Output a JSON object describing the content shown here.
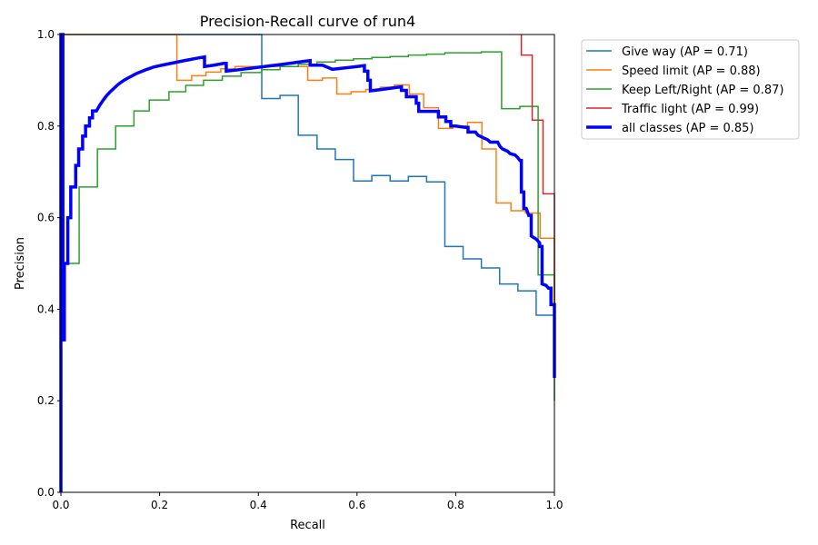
{
  "chart_data": {
    "type": "line",
    "title": "Precision-Recall curve of run4",
    "xlabel": "Recall",
    "ylabel": "Precision",
    "xlim": [
      0,
      1
    ],
    "ylim": [
      0,
      1
    ],
    "xticks": [
      0,
      0.2,
      0.4,
      0.6,
      0.8,
      1.0
    ],
    "xtick_labels": [
      "0.0",
      "0.2",
      "0.4",
      "0.6",
      "0.8",
      "1.0"
    ],
    "yticks": [
      0,
      0.2,
      0.4,
      0.6,
      0.8,
      1.0
    ],
    "ytick_labels": [
      "0.0",
      "0.2",
      "0.4",
      "0.6",
      "0.8",
      "1.0"
    ],
    "grid": false,
    "legend_position": "outside-top-right",
    "series": [
      {
        "name": "Give way (AP = 0.71)",
        "color": "#1f77b4",
        "style": "step",
        "points": [
          [
            0,
            1.0
          ],
          [
            0.407,
            1.0
          ],
          [
            0.407,
            0.86
          ],
          [
            0.444,
            0.86
          ],
          [
            0.444,
            0.867
          ],
          [
            0.481,
            0.867
          ],
          [
            0.481,
            0.78
          ],
          [
            0.519,
            0.78
          ],
          [
            0.519,
            0.75
          ],
          [
            0.556,
            0.75
          ],
          [
            0.556,
            0.727
          ],
          [
            0.593,
            0.727
          ],
          [
            0.593,
            0.68
          ],
          [
            0.63,
            0.68
          ],
          [
            0.63,
            0.692
          ],
          [
            0.667,
            0.692
          ],
          [
            0.667,
            0.68
          ],
          [
            0.704,
            0.68
          ],
          [
            0.704,
            0.69
          ],
          [
            0.741,
            0.69
          ],
          [
            0.741,
            0.678
          ],
          [
            0.778,
            0.678
          ],
          [
            0.778,
            0.537
          ],
          [
            0.815,
            0.537
          ],
          [
            0.815,
            0.51
          ],
          [
            0.852,
            0.51
          ],
          [
            0.852,
            0.49
          ],
          [
            0.889,
            0.49
          ],
          [
            0.889,
            0.455
          ],
          [
            0.926,
            0.455
          ],
          [
            0.926,
            0.44
          ],
          [
            0.963,
            0.44
          ],
          [
            0.963,
            0.387
          ],
          [
            1.0,
            0.387
          ],
          [
            1.0,
            0.25
          ]
        ]
      },
      {
        "name": "Speed limit (AP = 0.88)",
        "color": "#ff7f0e",
        "style": "step",
        "points": [
          [
            0,
            1.0
          ],
          [
            0.235,
            1.0
          ],
          [
            0.235,
            0.9
          ],
          [
            0.265,
            0.9
          ],
          [
            0.265,
            0.91
          ],
          [
            0.294,
            0.91
          ],
          [
            0.294,
            0.918
          ],
          [
            0.324,
            0.918
          ],
          [
            0.324,
            0.925
          ],
          [
            0.353,
            0.925
          ],
          [
            0.353,
            0.93
          ],
          [
            0.5,
            0.93
          ],
          [
            0.5,
            0.9
          ],
          [
            0.53,
            0.9
          ],
          [
            0.53,
            0.905
          ],
          [
            0.559,
            0.905
          ],
          [
            0.559,
            0.87
          ],
          [
            0.588,
            0.87
          ],
          [
            0.588,
            0.875
          ],
          [
            0.618,
            0.875
          ],
          [
            0.618,
            0.88
          ],
          [
            0.647,
            0.88
          ],
          [
            0.647,
            0.885
          ],
          [
            0.676,
            0.885
          ],
          [
            0.676,
            0.89
          ],
          [
            0.706,
            0.89
          ],
          [
            0.706,
            0.87
          ],
          [
            0.735,
            0.87
          ],
          [
            0.735,
            0.84
          ],
          [
            0.765,
            0.84
          ],
          [
            0.765,
            0.795
          ],
          [
            0.794,
            0.795
          ],
          [
            0.794,
            0.8
          ],
          [
            0.824,
            0.8
          ],
          [
            0.824,
            0.808
          ],
          [
            0.853,
            0.808
          ],
          [
            0.853,
            0.75
          ],
          [
            0.882,
            0.75
          ],
          [
            0.882,
            0.632
          ],
          [
            0.912,
            0.632
          ],
          [
            0.912,
            0.615
          ],
          [
            0.941,
            0.615
          ],
          [
            0.941,
            0.61
          ],
          [
            0.971,
            0.61
          ],
          [
            0.971,
            0.555
          ],
          [
            1.0,
            0.555
          ],
          [
            1.0,
            0.25
          ]
        ]
      },
      {
        "name": "Keep Left/Right (AP = 0.87)",
        "color": "#2ca02c",
        "style": "step",
        "points": [
          [
            0,
            1.0
          ],
          [
            0.005,
            1.0
          ],
          [
            0.005,
            0.5
          ],
          [
            0.037,
            0.5
          ],
          [
            0.037,
            0.667
          ],
          [
            0.074,
            0.667
          ],
          [
            0.074,
            0.75
          ],
          [
            0.111,
            0.75
          ],
          [
            0.111,
            0.8
          ],
          [
            0.148,
            0.8
          ],
          [
            0.148,
            0.833
          ],
          [
            0.179,
            0.833
          ],
          [
            0.179,
            0.857
          ],
          [
            0.219,
            0.857
          ],
          [
            0.219,
            0.875
          ],
          [
            0.253,
            0.875
          ],
          [
            0.253,
            0.889
          ],
          [
            0.289,
            0.889
          ],
          [
            0.289,
            0.9
          ],
          [
            0.327,
            0.9
          ],
          [
            0.327,
            0.909
          ],
          [
            0.365,
            0.909
          ],
          [
            0.365,
            0.917
          ],
          [
            0.407,
            0.917
          ],
          [
            0.407,
            0.923
          ],
          [
            0.444,
            0.923
          ],
          [
            0.444,
            0.93
          ],
          [
            0.481,
            0.93
          ],
          [
            0.481,
            0.935
          ],
          [
            0.519,
            0.935
          ],
          [
            0.519,
            0.94
          ],
          [
            0.556,
            0.94
          ],
          [
            0.556,
            0.944
          ],
          [
            0.593,
            0.944
          ],
          [
            0.593,
            0.947
          ],
          [
            0.63,
            0.947
          ],
          [
            0.63,
            0.95
          ],
          [
            0.667,
            0.95
          ],
          [
            0.667,
            0.952
          ],
          [
            0.704,
            0.952
          ],
          [
            0.704,
            0.955
          ],
          [
            0.741,
            0.955
          ],
          [
            0.741,
            0.957
          ],
          [
            0.778,
            0.957
          ],
          [
            0.778,
            0.96
          ],
          [
            0.852,
            0.96
          ],
          [
            0.852,
            0.962
          ],
          [
            0.893,
            0.962
          ],
          [
            0.893,
            0.838
          ],
          [
            0.93,
            0.838
          ],
          [
            0.93,
            0.843
          ],
          [
            0.967,
            0.843
          ],
          [
            0.967,
            0.475
          ],
          [
            1.0,
            0.475
          ],
          [
            1.0,
            0.2
          ]
        ]
      },
      {
        "name": "Traffic light (AP = 0.99)",
        "color": "#d62728",
        "style": "step",
        "points": [
          [
            0.933,
            1.0
          ],
          [
            0.933,
            0.955
          ],
          [
            0.955,
            0.955
          ],
          [
            0.955,
            0.813
          ],
          [
            0.977,
            0.813
          ],
          [
            0.977,
            0.652
          ],
          [
            1.0,
            0.652
          ],
          [
            1.0,
            0.4
          ]
        ]
      },
      {
        "name": "all classes (AP = 0.85)",
        "color": "#0000ff",
        "style": "line",
        "bold": true,
        "points": [
          [
            0,
            0.0
          ],
          [
            0,
            1.0
          ],
          [
            0.004,
            1.0
          ],
          [
            0.004,
            0.333
          ],
          [
            0.007,
            0.333
          ],
          [
            0.007,
            0.5
          ],
          [
            0.014,
            0.5
          ],
          [
            0.014,
            0.6
          ],
          [
            0.02,
            0.6
          ],
          [
            0.02,
            0.667
          ],
          [
            0.03,
            0.667
          ],
          [
            0.03,
            0.714
          ],
          [
            0.036,
            0.714
          ],
          [
            0.036,
            0.75
          ],
          [
            0.044,
            0.75
          ],
          [
            0.044,
            0.778
          ],
          [
            0.05,
            0.778
          ],
          [
            0.05,
            0.8
          ],
          [
            0.058,
            0.8
          ],
          [
            0.058,
            0.818
          ],
          [
            0.064,
            0.818
          ],
          [
            0.064,
            0.833
          ],
          [
            0.072,
            0.833
          ],
          [
            0.079,
            0.846
          ],
          [
            0.086,
            0.857
          ],
          [
            0.093,
            0.867
          ],
          [
            0.1,
            0.875
          ],
          [
            0.107,
            0.882
          ],
          [
            0.114,
            0.889
          ],
          [
            0.121,
            0.895
          ],
          [
            0.128,
            0.9
          ],
          [
            0.136,
            0.905
          ],
          [
            0.143,
            0.909
          ],
          [
            0.15,
            0.913
          ],
          [
            0.158,
            0.917
          ],
          [
            0.165,
            0.92
          ],
          [
            0.172,
            0.923
          ],
          [
            0.18,
            0.926
          ],
          [
            0.188,
            0.929
          ],
          [
            0.196,
            0.931
          ],
          [
            0.205,
            0.933
          ],
          [
            0.214,
            0.935
          ],
          [
            0.223,
            0.937
          ],
          [
            0.232,
            0.939
          ],
          [
            0.241,
            0.941
          ],
          [
            0.25,
            0.943
          ],
          [
            0.26,
            0.945
          ],
          [
            0.27,
            0.947
          ],
          [
            0.28,
            0.949
          ],
          [
            0.291,
            0.951
          ],
          [
            0.291,
            0.93
          ],
          [
            0.31,
            0.933
          ],
          [
            0.33,
            0.937
          ],
          [
            0.335,
            0.937
          ],
          [
            0.335,
            0.92
          ],
          [
            0.36,
            0.923
          ],
          [
            0.39,
            0.927
          ],
          [
            0.42,
            0.931
          ],
          [
            0.45,
            0.935
          ],
          [
            0.47,
            0.938
          ],
          [
            0.49,
            0.941
          ],
          [
            0.505,
            0.943
          ],
          [
            0.505,
            0.933
          ],
          [
            0.53,
            0.933
          ],
          [
            0.55,
            0.924
          ],
          [
            0.6,
            0.93
          ],
          [
            0.615,
            0.932
          ],
          [
            0.615,
            0.92
          ],
          [
            0.622,
            0.92
          ],
          [
            0.622,
            0.9
          ],
          [
            0.627,
            0.9
          ],
          [
            0.627,
            0.877
          ],
          [
            0.65,
            0.88
          ],
          [
            0.67,
            0.883
          ],
          [
            0.69,
            0.886
          ],
          [
            0.69,
            0.878
          ],
          [
            0.7,
            0.878
          ],
          [
            0.7,
            0.864
          ],
          [
            0.72,
            0.864
          ],
          [
            0.72,
            0.85
          ],
          [
            0.725,
            0.85
          ],
          [
            0.725,
            0.832
          ],
          [
            0.765,
            0.832
          ],
          [
            0.765,
            0.82
          ],
          [
            0.78,
            0.82
          ],
          [
            0.78,
            0.81
          ],
          [
            0.79,
            0.81
          ],
          [
            0.79,
            0.8
          ],
          [
            0.8,
            0.8
          ],
          [
            0.82,
            0.797
          ],
          [
            0.825,
            0.797
          ],
          [
            0.825,
            0.787
          ],
          [
            0.84,
            0.787
          ],
          [
            0.845,
            0.78
          ],
          [
            0.855,
            0.775
          ],
          [
            0.865,
            0.77
          ],
          [
            0.87,
            0.765
          ],
          [
            0.885,
            0.765
          ],
          [
            0.89,
            0.755
          ],
          [
            0.895,
            0.75
          ],
          [
            0.905,
            0.745
          ],
          [
            0.91,
            0.74
          ],
          [
            0.92,
            0.737
          ],
          [
            0.925,
            0.732
          ],
          [
            0.93,
            0.725
          ],
          [
            0.933,
            0.725
          ],
          [
            0.933,
            0.656
          ],
          [
            0.938,
            0.656
          ],
          [
            0.938,
            0.62
          ],
          [
            0.943,
            0.62
          ],
          [
            0.948,
            0.605
          ],
          [
            0.953,
            0.605
          ],
          [
            0.953,
            0.56
          ],
          [
            0.963,
            0.553
          ],
          [
            0.97,
            0.545
          ],
          [
            0.97,
            0.537
          ],
          [
            0.975,
            0.537
          ],
          [
            0.975,
            0.455
          ],
          [
            0.983,
            0.452
          ],
          [
            0.988,
            0.446
          ],
          [
            0.993,
            0.446
          ],
          [
            0.993,
            0.41
          ],
          [
            1.0,
            0.41
          ],
          [
            1.0,
            0.25
          ]
        ]
      }
    ]
  }
}
